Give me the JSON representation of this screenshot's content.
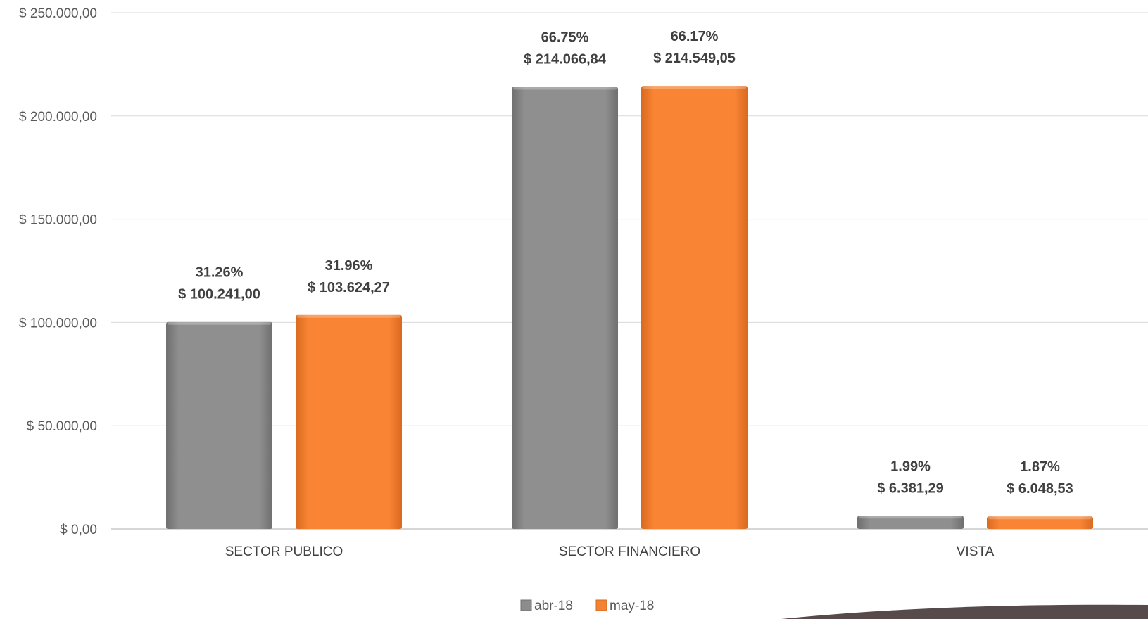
{
  "chart_data": {
    "type": "bar",
    "categories": [
      "SECTOR PUBLICO",
      "SECTOR FINANCIERO",
      "VISTA"
    ],
    "series": [
      {
        "name": "abr-18",
        "color": "#8c8c8c",
        "values": [
          100241.0,
          214066.84,
          6381.29
        ],
        "value_labels": [
          "$ 100.241,00",
          "$ 214.066,84",
          "$ 6.381,29"
        ],
        "percent_labels": [
          "31.26%",
          "66.75%",
          "1.99%"
        ]
      },
      {
        "name": "may-18",
        "color": "#f58231",
        "values": [
          103624.27,
          214549.05,
          6048.53
        ],
        "value_labels": [
          "$ 103.624,27",
          "$ 214.549,05",
          "$ 6.048,53"
        ],
        "percent_labels": [
          "31.96%",
          "66.17%",
          "1.87%"
        ]
      }
    ],
    "yticks": [
      0,
      50000,
      100000,
      150000,
      200000,
      250000
    ],
    "ytick_labels": [
      "$ 0,00",
      "$ 50.000,00",
      "$ 100.000,00",
      "$ 150.000,00",
      "$ 200.000,00",
      "$ 250.000,00"
    ],
    "ylim": [
      0,
      250000
    ],
    "title": "",
    "xlabel": "",
    "ylabel": "",
    "grid": true,
    "legend_position": "bottom"
  }
}
